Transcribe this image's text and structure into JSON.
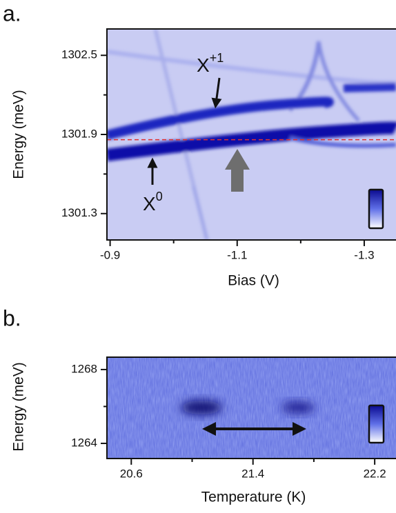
{
  "charts": [
    {
      "type": "heatmap",
      "panel_label": "a.",
      "xlabel": "Bias (V)",
      "ylabel": "Energy (meV)",
      "xlim": [
        -0.895,
        -1.35
      ],
      "ylim": [
        1301.1,
        1302.7
      ],
      "xticks": [
        -0.9,
        -1.1,
        -1.3
      ],
      "yticks": [
        1301.3,
        1301.9,
        1302.5
      ],
      "reference_line": {
        "y": 1301.86,
        "color": "#e03030"
      },
      "annotations": [
        {
          "text": "X",
          "sup": "+1"
        },
        {
          "text": "X",
          "sup": "0"
        }
      ]
    },
    {
      "type": "heatmap",
      "panel_label": "b.",
      "xlabel": "Temperature (K)",
      "ylabel": "Energy (meV)",
      "xlim": [
        20.44,
        22.34
      ],
      "ylim": [
        1263.18,
        1268.67
      ],
      "xticks": [
        20.6,
        21.4,
        22.2
      ],
      "yticks": [
        1264,
        1268
      ]
    }
  ]
}
